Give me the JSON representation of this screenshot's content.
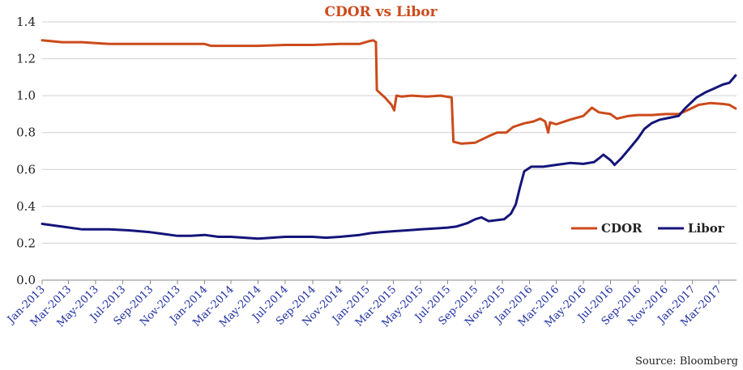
{
  "chart_data": {
    "type": "line",
    "title": "CDOR vs Libor",
    "source": "Source: Bloomberg",
    "xlabel": "",
    "ylabel": "",
    "ylim": [
      0,
      1.4
    ],
    "yticks": [
      "0.0",
      "0.2",
      "0.4",
      "0.6",
      "0.8",
      "1.0",
      "1.2",
      "1.4"
    ],
    "xlim": [
      "2013-01-01",
      "2017-04-10"
    ],
    "xticks": [
      {
        "date": "2013-01-01",
        "label": "Jan-2013"
      },
      {
        "date": "2013-03-01",
        "label": "Mar-2013"
      },
      {
        "date": "2013-05-01",
        "label": "May-2013"
      },
      {
        "date": "2013-07-01",
        "label": "Jul-2013"
      },
      {
        "date": "2013-09-01",
        "label": "Sep-2013"
      },
      {
        "date": "2013-11-01",
        "label": "Nov-2013"
      },
      {
        "date": "2014-01-01",
        "label": "Jan-2014"
      },
      {
        "date": "2014-03-01",
        "label": "Mar-2014"
      },
      {
        "date": "2014-05-01",
        "label": "May-2014"
      },
      {
        "date": "2014-07-01",
        "label": "Jul-2014"
      },
      {
        "date": "2014-09-01",
        "label": "Sep-2014"
      },
      {
        "date": "2014-11-01",
        "label": "Nov-2014"
      },
      {
        "date": "2015-01-01",
        "label": "Jan-2015"
      },
      {
        "date": "2015-03-01",
        "label": "Mar-2015"
      },
      {
        "date": "2015-05-01",
        "label": "May-2015"
      },
      {
        "date": "2015-07-01",
        "label": "Jul-2015"
      },
      {
        "date": "2015-09-01",
        "label": "Sep-2015"
      },
      {
        "date": "2015-11-01",
        "label": "Nov-2015"
      },
      {
        "date": "2016-01-01",
        "label": "Jan-2016"
      },
      {
        "date": "2016-03-01",
        "label": "Mar-2016"
      },
      {
        "date": "2016-05-01",
        "label": "May-2016"
      },
      {
        "date": "2016-07-01",
        "label": "Jul-2016"
      },
      {
        "date": "2016-09-01",
        "label": "Sep-2016"
      },
      {
        "date": "2016-11-01",
        "label": "Nov-2016"
      },
      {
        "date": "2017-01-01",
        "label": "Jan-2017"
      },
      {
        "date": "2017-03-01",
        "label": "Mar-2017"
      }
    ],
    "grid": "horizontal",
    "legend_position": "right",
    "series": [
      {
        "name": "CDOR",
        "color": "#cc4a1b",
        "points": [
          [
            "2013-01-01",
            1.3
          ],
          [
            "2013-02-15",
            1.29
          ],
          [
            "2013-04-01",
            1.29
          ],
          [
            "2013-06-01",
            1.28
          ],
          [
            "2013-07-01",
            1.28
          ],
          [
            "2013-09-01",
            1.28
          ],
          [
            "2013-11-01",
            1.28
          ],
          [
            "2014-01-01",
            1.28
          ],
          [
            "2014-01-15",
            1.27
          ],
          [
            "2014-03-01",
            1.27
          ],
          [
            "2014-05-01",
            1.27
          ],
          [
            "2014-07-01",
            1.275
          ],
          [
            "2014-09-01",
            1.275
          ],
          [
            "2014-11-01",
            1.28
          ],
          [
            "2014-12-15",
            1.28
          ],
          [
            "2015-01-05",
            1.295
          ],
          [
            "2015-01-15",
            1.3
          ],
          [
            "2015-01-21",
            1.29
          ],
          [
            "2015-01-23",
            1.03
          ],
          [
            "2015-02-10",
            0.99
          ],
          [
            "2015-02-25",
            0.95
          ],
          [
            "2015-03-03",
            0.92
          ],
          [
            "2015-03-08",
            1.0
          ],
          [
            "2015-03-20",
            0.995
          ],
          [
            "2015-04-10",
            1.0
          ],
          [
            "2015-05-15",
            0.995
          ],
          [
            "2015-06-15",
            1.0
          ],
          [
            "2015-07-10",
            0.99
          ],
          [
            "2015-07-14",
            0.75
          ],
          [
            "2015-08-01",
            0.74
          ],
          [
            "2015-09-01",
            0.745
          ],
          [
            "2015-10-01",
            0.78
          ],
          [
            "2015-10-20",
            0.8
          ],
          [
            "2015-11-10",
            0.8
          ],
          [
            "2015-11-25",
            0.83
          ],
          [
            "2015-12-20",
            0.85
          ],
          [
            "2016-01-10",
            0.86
          ],
          [
            "2016-01-25",
            0.875
          ],
          [
            "2016-02-05",
            0.86
          ],
          [
            "2016-02-12",
            0.8
          ],
          [
            "2016-02-16",
            0.855
          ],
          [
            "2016-03-01",
            0.845
          ],
          [
            "2016-04-01",
            0.87
          ],
          [
            "2016-05-01",
            0.89
          ],
          [
            "2016-05-20",
            0.935
          ],
          [
            "2016-06-05",
            0.91
          ],
          [
            "2016-07-01",
            0.9
          ],
          [
            "2016-07-15",
            0.875
          ],
          [
            "2016-08-10",
            0.89
          ],
          [
            "2016-09-01",
            0.895
          ],
          [
            "2016-10-01",
            0.895
          ],
          [
            "2016-11-01",
            0.9
          ],
          [
            "2016-12-01",
            0.9
          ],
          [
            "2016-12-20",
            0.92
          ],
          [
            "2017-01-15",
            0.95
          ],
          [
            "2017-02-10",
            0.96
          ],
          [
            "2017-03-10",
            0.955
          ],
          [
            "2017-03-25",
            0.95
          ],
          [
            "2017-04-08",
            0.93
          ]
        ]
      },
      {
        "name": "Libor",
        "color": "#15157a",
        "points": [
          [
            "2013-01-01",
            0.305
          ],
          [
            "2013-02-15",
            0.29
          ],
          [
            "2013-04-01",
            0.275
          ],
          [
            "2013-06-01",
            0.275
          ],
          [
            "2013-07-15",
            0.27
          ],
          [
            "2013-09-01",
            0.26
          ],
          [
            "2013-10-01",
            0.25
          ],
          [
            "2013-11-01",
            0.24
          ],
          [
            "2013-12-01",
            0.24
          ],
          [
            "2014-01-01",
            0.245
          ],
          [
            "2014-02-01",
            0.235
          ],
          [
            "2014-03-01",
            0.235
          ],
          [
            "2014-04-01",
            0.23
          ],
          [
            "2014-05-01",
            0.225
          ],
          [
            "2014-06-01",
            0.23
          ],
          [
            "2014-07-01",
            0.235
          ],
          [
            "2014-08-01",
            0.235
          ],
          [
            "2014-09-01",
            0.235
          ],
          [
            "2014-10-01",
            0.23
          ],
          [
            "2014-11-01",
            0.235
          ],
          [
            "2014-12-15",
            0.245
          ],
          [
            "2015-01-10",
            0.255
          ],
          [
            "2015-02-01",
            0.26
          ],
          [
            "2015-03-01",
            0.265
          ],
          [
            "2015-04-01",
            0.27
          ],
          [
            "2015-05-01",
            0.275
          ],
          [
            "2015-06-01",
            0.28
          ],
          [
            "2015-07-01",
            0.285
          ],
          [
            "2015-07-20",
            0.29
          ],
          [
            "2015-08-15",
            0.31
          ],
          [
            "2015-09-01",
            0.33
          ],
          [
            "2015-09-15",
            0.34
          ],
          [
            "2015-10-01",
            0.32
          ],
          [
            "2015-10-20",
            0.325
          ],
          [
            "2015-11-05",
            0.33
          ],
          [
            "2015-11-20",
            0.36
          ],
          [
            "2015-12-01",
            0.41
          ],
          [
            "2015-12-10",
            0.5
          ],
          [
            "2015-12-20",
            0.59
          ],
          [
            "2016-01-05",
            0.615
          ],
          [
            "2016-02-01",
            0.615
          ],
          [
            "2016-03-01",
            0.625
          ],
          [
            "2016-04-01",
            0.635
          ],
          [
            "2016-05-01",
            0.63
          ],
          [
            "2016-05-25",
            0.64
          ],
          [
            "2016-06-05",
            0.66
          ],
          [
            "2016-06-15",
            0.68
          ],
          [
            "2016-07-01",
            0.65
          ],
          [
            "2016-07-10",
            0.625
          ],
          [
            "2016-07-25",
            0.66
          ],
          [
            "2016-08-15",
            0.72
          ],
          [
            "2016-09-01",
            0.77
          ],
          [
            "2016-09-15",
            0.82
          ],
          [
            "2016-10-01",
            0.85
          ],
          [
            "2016-10-20",
            0.87
          ],
          [
            "2016-11-10",
            0.88
          ],
          [
            "2016-12-01",
            0.89
          ],
          [
            "2016-12-15",
            0.93
          ],
          [
            "2017-01-10",
            0.99
          ],
          [
            "2017-02-01",
            1.02
          ],
          [
            "2017-02-20",
            1.04
          ],
          [
            "2017-03-10",
            1.06
          ],
          [
            "2017-03-25",
            1.07
          ],
          [
            "2017-04-01",
            1.09
          ],
          [
            "2017-04-08",
            1.11
          ]
        ]
      }
    ]
  }
}
